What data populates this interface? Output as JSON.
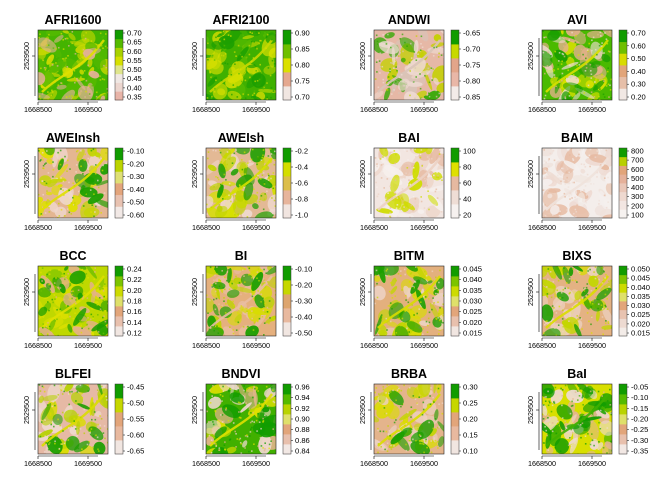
{
  "chart_data": [
    {
      "type": "heatmap",
      "title": "AFRI1600",
      "legend_ticks": [
        "0.70",
        "0.65",
        "0.60",
        "0.55",
        "0.50",
        "0.45",
        "0.40",
        "0.35"
      ],
      "xticks": [
        "1668500",
        "1669500"
      ],
      "yticks": [
        "2529500"
      ],
      "colors": [
        "#e8b4a8",
        "#ecd6cf",
        "#f0e8e4",
        "#dfe58c",
        "#d6e000",
        "#a9d200",
        "#55ba00",
        "#119c00"
      ]
    },
    {
      "type": "heatmap",
      "title": "AFRI2100",
      "legend_ticks": [
        "0.90",
        "0.85",
        "0.80",
        "0.75",
        "0.70"
      ],
      "xticks": [
        "1668500",
        "1669500"
      ],
      "yticks": [
        "2529500"
      ],
      "colors": [
        "#f1e6e1",
        "#e5a88f",
        "#dbe000",
        "#6fbf00",
        "#119c00"
      ]
    },
    {
      "type": "heatmap",
      "title": "ANDWI",
      "legend_ticks": [
        "-0.65",
        "-0.70",
        "-0.75",
        "-0.80",
        "-0.85"
      ],
      "xticks": [
        "1668500",
        "1669500"
      ],
      "yticks": [
        "2529500"
      ],
      "colors": [
        "#f3ebe8",
        "#e9b7a7",
        "#e2a58a",
        "#c7d900",
        "#119c00"
      ]
    },
    {
      "type": "heatmap",
      "title": "AVI",
      "legend_ticks": [
        "0.70",
        "0.60",
        "0.50",
        "0.40",
        "0.30",
        "0.20"
      ],
      "xticks": [
        "1668500",
        "1669500"
      ],
      "yticks": [
        "2529500"
      ],
      "colors": [
        "#f1e8e4",
        "#e6bfa9",
        "#e2a57a",
        "#d8db00",
        "#6fbf00",
        "#119c00"
      ]
    },
    {
      "type": "heatmap",
      "title": "AWEInsh",
      "legend_ticks": [
        "-0.10",
        "-0.20",
        "-0.30",
        "-0.40",
        "-0.50",
        "-0.60"
      ],
      "xticks": [
        "1668500",
        "1669500"
      ],
      "yticks": [
        "2529500"
      ],
      "colors": [
        "#f2e9e6",
        "#e8c2b1",
        "#e3a57c",
        "#dfe075",
        "#bcd400",
        "#119c00"
      ]
    },
    {
      "type": "heatmap",
      "title": "AWEIsh",
      "legend_ticks": [
        "-0.2",
        "-0.4",
        "-0.6",
        "-0.8",
        "-1.0"
      ],
      "xticks": [
        "1668500",
        "1669500"
      ],
      "yticks": [
        "2529500"
      ],
      "colors": [
        "#f1e5e0",
        "#e7b59c",
        "#dcbe4b",
        "#d4dd00",
        "#119c00"
      ]
    },
    {
      "type": "heatmap",
      "title": "BAI",
      "legend_ticks": [
        "100",
        "80",
        "60",
        "40",
        "20"
      ],
      "xticks": [
        "1668500",
        "1669500"
      ],
      "yticks": [
        "2529500"
      ],
      "colors": [
        "#f6f1ef",
        "#eeddd5",
        "#e6b9a0",
        "#dfe000",
        "#119c00"
      ]
    },
    {
      "type": "heatmap",
      "title": "BAIM",
      "legend_ticks": [
        "800",
        "700",
        "600",
        "500",
        "400",
        "300",
        "200",
        "100"
      ],
      "xticks": [
        "1668500",
        "1669500"
      ],
      "yticks": [
        "2529500"
      ],
      "colors": [
        "#f6f2f0",
        "#f2e6e2",
        "#eed9d0",
        "#e9c7b8",
        "#e5b19a",
        "#e2a57a",
        "#b8cf00",
        "#119c00"
      ]
    },
    {
      "type": "heatmap",
      "title": "BCC",
      "legend_ticks": [
        "0.24",
        "0.22",
        "0.20",
        "0.18",
        "0.16",
        "0.14",
        "0.12"
      ],
      "xticks": [
        "1668500",
        "1669500"
      ],
      "yticks": [
        "2529500"
      ],
      "colors": [
        "#f1e6e1",
        "#e8c0ad",
        "#e2a57a",
        "#dfe06a",
        "#cddb00",
        "#7dc400",
        "#119c00"
      ]
    },
    {
      "type": "heatmap",
      "title": "BI",
      "legend_ticks": [
        "-0.10",
        "-0.20",
        "-0.30",
        "-0.40",
        "-0.50"
      ],
      "xticks": [
        "1668500",
        "1669500"
      ],
      "yticks": [
        "2529500"
      ],
      "colors": [
        "#f1e6e1",
        "#e8b99f",
        "#dda56f",
        "#c6d700",
        "#119c00"
      ]
    },
    {
      "type": "heatmap",
      "title": "BITM",
      "legend_ticks": [
        "0.045",
        "0.040",
        "0.035",
        "0.030",
        "0.025",
        "0.020",
        "0.015"
      ],
      "xticks": [
        "1668500",
        "1669500"
      ],
      "yticks": [
        "2529500"
      ],
      "colors": [
        "#f1e6e1",
        "#e8c0ad",
        "#e2a57a",
        "#dfe06a",
        "#cddb00",
        "#7dc400",
        "#119c00"
      ]
    },
    {
      "type": "heatmap",
      "title": "BIXS",
      "legend_ticks": [
        "0.050",
        "0.045",
        "0.040",
        "0.035",
        "0.030",
        "0.025",
        "0.020",
        "0.015"
      ],
      "xticks": [
        "1668500",
        "1669500"
      ],
      "yticks": [
        "2529500"
      ],
      "colors": [
        "#f3ece8",
        "#eddad1",
        "#e8c3b0",
        "#e2a57a",
        "#dfe06a",
        "#cddb00",
        "#7dc400",
        "#119c00"
      ]
    },
    {
      "type": "heatmap",
      "title": "BLFEI",
      "legend_ticks": [
        "-0.45",
        "-0.50",
        "-0.55",
        "-0.60",
        "-0.65"
      ],
      "xticks": [
        "1668500",
        "1669500"
      ],
      "yticks": [
        "2529500"
      ],
      "colors": [
        "#f1e6e1",
        "#e8b99f",
        "#e2a57a",
        "#c6d700",
        "#119c00"
      ]
    },
    {
      "type": "heatmap",
      "title": "BNDVI",
      "legend_ticks": [
        "0.96",
        "0.94",
        "0.92",
        "0.90",
        "0.88",
        "0.86",
        "0.84"
      ],
      "xticks": [
        "1668500",
        "1669500"
      ],
      "yticks": [
        "2529500"
      ],
      "colors": [
        "#f2e8e4",
        "#e8c0ad",
        "#e2a57a",
        "#dfe06a",
        "#b9d300",
        "#55ba00",
        "#119c00"
      ]
    },
    {
      "type": "heatmap",
      "title": "BRBA",
      "legend_ticks": [
        "0.30",
        "0.25",
        "0.20",
        "0.15",
        "0.10"
      ],
      "xticks": [
        "1668500",
        "1669500"
      ],
      "yticks": [
        "2529500"
      ],
      "colors": [
        "#f1e6e1",
        "#e8b99f",
        "#e2a57a",
        "#c6d700",
        "#119c00"
      ]
    },
    {
      "type": "heatmap",
      "title": "BaI",
      "legend_ticks": [
        "-0.05",
        "-0.10",
        "-0.15",
        "-0.20",
        "-0.25",
        "-0.30",
        "-0.35"
      ],
      "xticks": [
        "1668500",
        "1669500"
      ],
      "yticks": [
        "2529500"
      ],
      "colors": [
        "#f2e8e4",
        "#e8c0ad",
        "#e2a57a",
        "#dfe06a",
        "#b9d300",
        "#55ba00",
        "#119c00"
      ]
    }
  ],
  "render": {
    "AFRI1600": {
      "bg": "#44b400",
      "patterns": [
        "#dfe000",
        "#c8d800",
        "#55ba00",
        "#e6b09a"
      ]
    },
    "AFRI2100": {
      "bg": "#3fb000",
      "patterns": [
        "#c6d800",
        "#55ba00",
        "#d9e000",
        "#1c9f00"
      ]
    },
    "ANDWI": {
      "bg": "#e6b8a6",
      "patterns": [
        "#d9c4b8",
        "#c4d000",
        "#2fa800",
        "#eedad1"
      ]
    },
    "AVI": {
      "bg": "#4aba00",
      "patterns": [
        "#d8e000",
        "#e3b08a",
        "#f0dcd3",
        "#1c9f00"
      ]
    },
    "AWEInsh": {
      "bg": "#e4b692",
      "patterns": [
        "#dfe000",
        "#efd7cd",
        "#c4d600",
        "#1c9f00"
      ]
    },
    "AWEIsh": {
      "bg": "#e3b995",
      "patterns": [
        "#d6e000",
        "#efd9cf",
        "#bfd300",
        "#1c9f00"
      ]
    },
    "BAI": {
      "bg": "#f2e6e1",
      "patterns": [
        "#ecd2c4",
        "#e6b9a0",
        "#f6f0ed",
        "#cfdc00"
      ]
    },
    "BAIM": {
      "bg": "#f4eeeb",
      "patterns": [
        "#efe2dc",
        "#eed9d0",
        "#e6b9a0",
        "#f5f0ee"
      ]
    },
    "BCC": {
      "bg": "#bfd800",
      "patterns": [
        "#dfe000",
        "#6fbf00",
        "#e3b08a",
        "#1c9f00"
      ]
    },
    "BI": {
      "bg": "#e5b07e",
      "patterns": [
        "#e9bea3",
        "#d7dd00",
        "#bcd400",
        "#1c9f00"
      ]
    },
    "BITM": {
      "bg": "#e3b07e",
      "patterns": [
        "#d9dd00",
        "#ecd1c2",
        "#c3d600",
        "#1c9f00"
      ]
    },
    "BIXS": {
      "bg": "#e4b283",
      "patterns": [
        "#dadd00",
        "#ecd1c2",
        "#c3d600",
        "#1c9f00"
      ]
    },
    "BLFEI": {
      "bg": "#e6b9a5",
      "patterns": [
        "#dadd00",
        "#efdad0",
        "#b6d100",
        "#1c9f00"
      ]
    },
    "BNDVI": {
      "bg": "#41b000",
      "patterns": [
        "#dfe000",
        "#e6b48e",
        "#eed8cd",
        "#119c00"
      ]
    },
    "BRBA": {
      "bg": "#e4b48c",
      "patterns": [
        "#dadd00",
        "#ecd1c2",
        "#c3d600",
        "#1c9f00"
      ]
    },
    "BaI": {
      "bg": "#d8df00",
      "patterns": [
        "#3fb000",
        "#e3b590",
        "#eedad1",
        "#119c00"
      ]
    }
  }
}
